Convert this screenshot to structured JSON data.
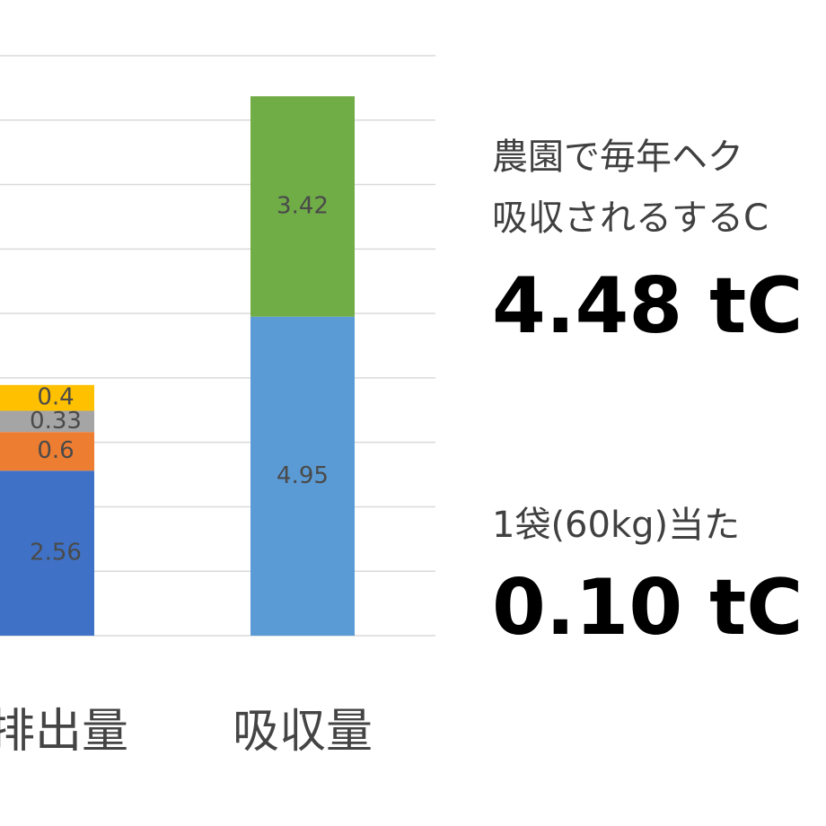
{
  "chart_data": {
    "type": "stacked-bar",
    "categories": [
      "排出量",
      "吸収量"
    ],
    "series": [
      {
        "color": "#3f72c6",
        "values": [
          2.56,
          null
        ]
      },
      {
        "color": "#ed7d31",
        "values": [
          0.6,
          null
        ]
      },
      {
        "color": "#a5a5a5",
        "values": [
          0.33,
          null
        ]
      },
      {
        "color": "#ffc000",
        "values": [
          0.4,
          null
        ]
      },
      {
        "color": "#5b9bd5",
        "values": [
          null,
          4.95
        ]
      },
      {
        "color": "#70ad47",
        "values": [
          null,
          3.42
        ]
      }
    ],
    "ylim": [
      0,
      9
    ],
    "yticks": [
      0,
      1,
      2,
      3,
      4,
      5,
      6,
      7,
      8,
      9
    ],
    "grid": true,
    "annotations": [
      "農園で毎年ヘク",
      "吸収されるするC",
      "4.48 tC",
      "1袋(60kg)当た",
      "0.10 tC"
    ]
  }
}
